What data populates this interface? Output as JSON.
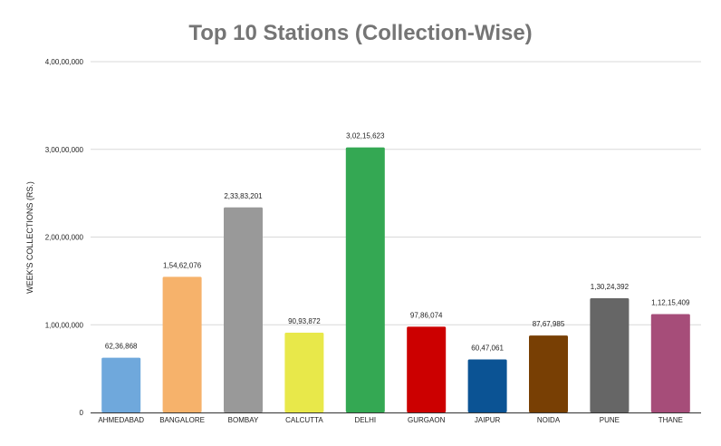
{
  "chart_data": {
    "type": "bar",
    "title": "Top 10 Stations (Collection-Wise)",
    "xlabel": "",
    "ylabel": "WEEK'S COLLECTIONS (RS.)",
    "ylim": [
      0,
      40000000
    ],
    "yticks": [
      {
        "value": 0,
        "label": "0"
      },
      {
        "value": 10000000,
        "label": "1,00,00,000"
      },
      {
        "value": 20000000,
        "label": "2,00,00,000"
      },
      {
        "value": 30000000,
        "label": "3,00,00,000"
      },
      {
        "value": 40000000,
        "label": "4,00,00,000"
      }
    ],
    "grid": true,
    "categories": [
      "AHMEDABAD",
      "BANGALORE",
      "BOMBAY",
      "CALCUTTA",
      "DELHI",
      "GURGAON",
      "JAIPUR",
      "NOIDA",
      "PUNE",
      "THANE"
    ],
    "values": [
      6236868,
      15462076,
      23383201,
      9093872,
      30215623,
      9786074,
      6047061,
      8767985,
      13024392,
      11215409
    ],
    "data_labels": [
      "62,36,868",
      "1,54,62,076",
      "2,33,83,201",
      "90,93,872",
      "3,02,15,623",
      "97,86,074",
      "60,47,061",
      "87,67,985",
      "1,30,24,392",
      "1,12,15,409"
    ],
    "colors": [
      "#6fa8dc",
      "#f6b26b",
      "#999999",
      "#e8e84a",
      "#34a853",
      "#cc0000",
      "#0b5394",
      "#783f04",
      "#666666",
      "#a64d79"
    ]
  }
}
